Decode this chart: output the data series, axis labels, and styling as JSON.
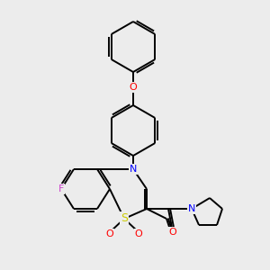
{
  "background_color": "#ececec",
  "bond_color": "#000000",
  "bond_lw": 1.4,
  "atom_labels": {
    "F": {
      "color": "#cc44cc",
      "fontsize": 8
    },
    "N": {
      "color": "#0000ff",
      "fontsize": 8
    },
    "O": {
      "color": "#ff0000",
      "fontsize": 8
    },
    "S": {
      "color": "#cccc00",
      "fontsize": 9
    }
  }
}
